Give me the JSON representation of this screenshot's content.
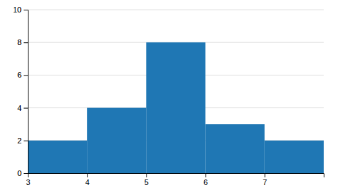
{
  "chart_data": {
    "type": "histogram",
    "bins": [
      3,
      4,
      5,
      6,
      7,
      8
    ],
    "values": [
      2,
      4,
      8,
      3,
      2
    ],
    "xlim": [
      3,
      8
    ],
    "xticks": [
      3,
      4,
      5,
      6,
      7
    ],
    "ylim": [
      0,
      10
    ],
    "yticks": [
      0,
      2,
      4,
      6,
      8,
      10
    ],
    "grid": true
  }
}
